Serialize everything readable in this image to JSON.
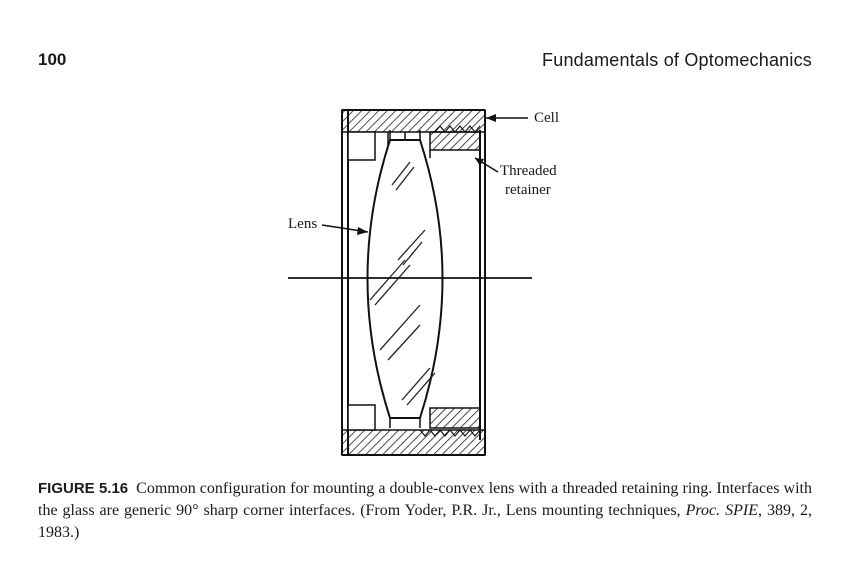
{
  "header": {
    "page_number": "100",
    "running_title": "Fundamentals of Optomechanics"
  },
  "figure": {
    "callouts": {
      "cell": "Cell",
      "retainer_line1": "Threaded",
      "retainer_line2": "retainer",
      "lens": "Lens"
    }
  },
  "caption": {
    "label": "FIGURE 5.16",
    "text_part1": "Common configuration for mounting a double-convex lens with a threaded retaining ring. Interfaces with the glass are generic 90° sharp corner interfaces. (From Yoder, P.R. Jr., Lens mounting techniques, ",
    "italic": "Proc. SPIE",
    "text_part2": ", 389, 2, 1983.)"
  }
}
